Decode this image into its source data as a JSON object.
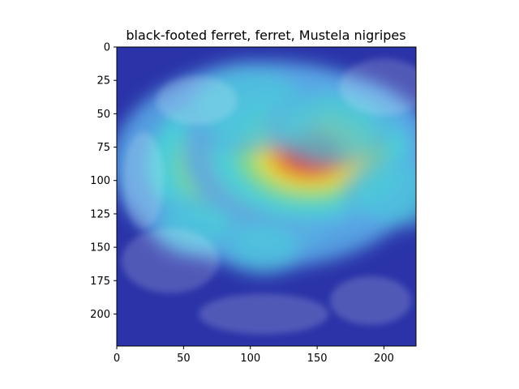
{
  "chart_data": {
    "type": "heatmap",
    "title": "black-footed ferret, ferret, Mustela nigripes",
    "xlabel": "",
    "ylabel": "",
    "xlim": [
      0,
      224
    ],
    "ylim": [
      224,
      0
    ],
    "xticks": [
      0,
      50,
      100,
      150,
      200
    ],
    "yticks": [
      0,
      25,
      50,
      75,
      100,
      125,
      150,
      175,
      200
    ],
    "colormap": "jet",
    "grid": false,
    "hotspots": [
      {
        "x": 115,
        "y": 88,
        "intensity": 1.0
      },
      {
        "x": 145,
        "y": 80,
        "intensity": 0.8
      },
      {
        "x": 100,
        "y": 45,
        "intensity": 0.45
      },
      {
        "x": 160,
        "y": 60,
        "intensity": 0.4
      },
      {
        "x": 210,
        "y": 110,
        "intensity": 0.35
      },
      {
        "x": 60,
        "y": 135,
        "intensity": 0.3
      },
      {
        "x": 110,
        "y": 150,
        "intensity": 0.28
      }
    ],
    "colors": {
      "background_low": "#2a34a8",
      "peak": "#d8201c"
    }
  }
}
